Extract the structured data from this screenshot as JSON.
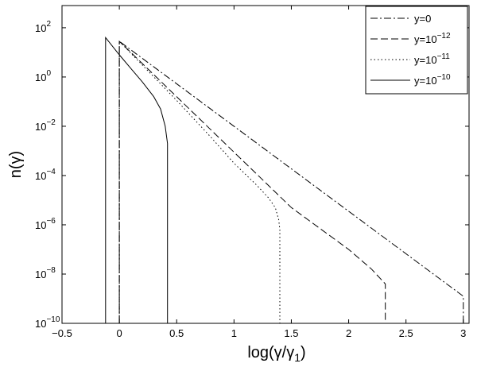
{
  "chart_data": {
    "type": "line",
    "xlabel": "log(γ/γ",
    "xlabel_sub": "1",
    "xlabel_close": ")",
    "ylabel": "n(γ)",
    "xlim": [
      -0.5,
      3.05
    ],
    "ylim": [
      -10,
      2.9
    ],
    "y_scale": "log",
    "grid": false,
    "legend_position": "top-right",
    "x_ticks": [
      {
        "value": -0.5,
        "label": "−0.5"
      },
      {
        "value": 0,
        "label": "0"
      },
      {
        "value": 0.5,
        "label": "0.5"
      },
      {
        "value": 1,
        "label": "1"
      },
      {
        "value": 1.5,
        "label": "1.5"
      },
      {
        "value": 2,
        "label": "2"
      },
      {
        "value": 2.5,
        "label": "2.5"
      },
      {
        "value": 3,
        "label": "3"
      }
    ],
    "y_ticks": [
      {
        "value": 2,
        "base": "10",
        "exp": "2"
      },
      {
        "value": 0,
        "base": "10",
        "exp": "0"
      },
      {
        "value": -2,
        "base": "10",
        "exp": "−2"
      },
      {
        "value": -4,
        "base": "10",
        "exp": "−4"
      },
      {
        "value": -6,
        "base": "10",
        "exp": "−6"
      },
      {
        "value": -8,
        "base": "10",
        "exp": "−8"
      },
      {
        "value": -10,
        "base": "10",
        "exp": "−10"
      }
    ],
    "series": [
      {
        "name_base": "y=0",
        "name_exp": "",
        "dash": "dashdot",
        "x": [
          0,
          0,
          3.0,
          3.0
        ],
        "y": [
          -10,
          1.45,
          -8.9,
          -10
        ]
      },
      {
        "name_base": "y=10",
        "name_exp": "−12",
        "dash": "dashed",
        "x": [
          0,
          0,
          1.0,
          1.5,
          2.0,
          2.2,
          2.32,
          2.32
        ],
        "y": [
          -10,
          1.45,
          -3.05,
          -5.3,
          -7.0,
          -7.8,
          -8.4,
          -10
        ]
      },
      {
        "name_base": "y=10",
        "name_exp": "−11",
        "dash": "dotted",
        "x": [
          0,
          0,
          0.5,
          0.8,
          1.0,
          1.2,
          1.3,
          1.36,
          1.39,
          1.4,
          1.4
        ],
        "y": [
          -10,
          1.45,
          -0.95,
          -2.45,
          -3.5,
          -4.4,
          -4.9,
          -5.3,
          -5.8,
          -6.2,
          -10
        ]
      },
      {
        "name_base": "y=10",
        "name_exp": "−10",
        "dash": "solid",
        "x": [
          -0.12,
          -0.12,
          0.0,
          0.1,
          0.2,
          0.3,
          0.36,
          0.4,
          0.42,
          0.42,
          0.42
        ],
        "y": [
          -10,
          1.6,
          0.9,
          0.35,
          -0.2,
          -0.8,
          -1.3,
          -2.0,
          -2.7,
          -3.4,
          -10
        ]
      }
    ]
  }
}
